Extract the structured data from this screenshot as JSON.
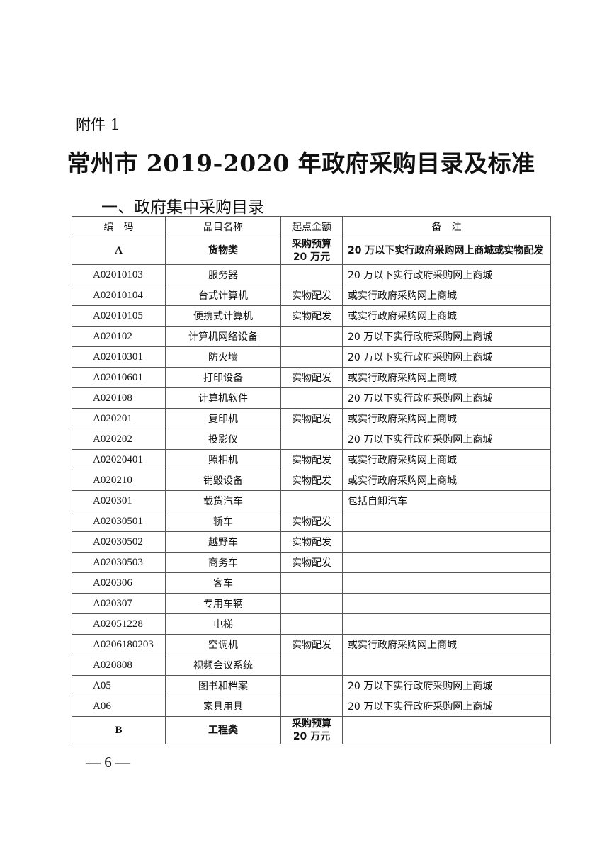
{
  "attachment_label": "附件 1",
  "title": "常州市 2019-2020 年政府采购目录及标准",
  "section_heading": "一、政府集中采购目录",
  "table": {
    "headers": [
      "编　码",
      "品目名称",
      "起点金额",
      "备　注"
    ],
    "rows": [
      {
        "code": "A",
        "name": "货物类",
        "threshold": "采购预算20 万元",
        "note": "20 万以下实行政府采购网上商城或实物配发",
        "category": true
      },
      {
        "code": "A02010103",
        "name": "服务器",
        "threshold": "",
        "note": "20 万以下实行政府采购网上商城"
      },
      {
        "code": "A02010104",
        "name": "台式计算机",
        "threshold": "实物配发",
        "note": "或实行政府采购网上商城"
      },
      {
        "code": "A02010105",
        "name": "便携式计算机",
        "threshold": "实物配发",
        "note": "或实行政府采购网上商城"
      },
      {
        "code": "A020102",
        "name": "计算机网络设备",
        "threshold": "",
        "note": "20 万以下实行政府采购网上商城"
      },
      {
        "code": "A02010301",
        "name": "防火墙",
        "threshold": "",
        "note": "20 万以下实行政府采购网上商城"
      },
      {
        "code": "A02010601",
        "name": "打印设备",
        "threshold": "实物配发",
        "note": "或实行政府采购网上商城"
      },
      {
        "code": "A020108",
        "name": "计算机软件",
        "threshold": "",
        "note": "20 万以下实行政府采购网上商城"
      },
      {
        "code": "A020201",
        "name": "复印机",
        "threshold": "实物配发",
        "note": "或实行政府采购网上商城"
      },
      {
        "code": "A020202",
        "name": "投影仪",
        "threshold": "",
        "note": "20 万以下实行政府采购网上商城"
      },
      {
        "code": "A02020401",
        "name": "照相机",
        "threshold": "实物配发",
        "note": "或实行政府采购网上商城"
      },
      {
        "code": "A020210",
        "name": "销毁设备",
        "threshold": "实物配发",
        "note": "或实行政府采购网上商城"
      },
      {
        "code": "A020301",
        "name": "载货汽车",
        "threshold": "",
        "note": "包括自卸汽车"
      },
      {
        "code": "A02030501",
        "name": "轿车",
        "threshold": "实物配发",
        "note": ""
      },
      {
        "code": "A02030502",
        "name": "越野车",
        "threshold": "实物配发",
        "note": ""
      },
      {
        "code": "A02030503",
        "name": "商务车",
        "threshold": "实物配发",
        "note": ""
      },
      {
        "code": "A020306",
        "name": "客车",
        "threshold": "",
        "note": ""
      },
      {
        "code": "A020307",
        "name": "专用车辆",
        "threshold": "",
        "note": ""
      },
      {
        "code": "A02051228",
        "name": "电梯",
        "threshold": "",
        "note": ""
      },
      {
        "code": "A0206180203",
        "name": "空调机",
        "threshold": "实物配发",
        "note": "或实行政府采购网上商城"
      },
      {
        "code": "A020808",
        "name": "视频会议系统",
        "threshold": "",
        "note": ""
      },
      {
        "code": "A05",
        "name": "图书和档案",
        "threshold": "",
        "note": "20 万以下实行政府采购网上商城"
      },
      {
        "code": "A06",
        "name": "家具用具",
        "threshold": "",
        "note": "20 万以下实行政府采购网上商城"
      },
      {
        "code": "B",
        "name": "工程类",
        "threshold": "采购预算20 万元",
        "note": "",
        "category": true
      }
    ]
  },
  "page_number": "— 6 —"
}
